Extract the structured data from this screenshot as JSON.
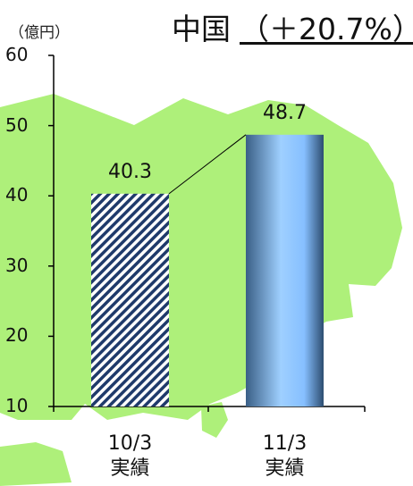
{
  "unit_label": "（億円）",
  "title": "中国",
  "change": "（＋20.7%）",
  "colors": {
    "map": "#aef07a",
    "bar1_stripe_dark": "#1f3a6b",
    "bar2_light": "#9fd0ff",
    "bar2_dark": "#3a5f86",
    "axis": "#000000"
  },
  "chart_data": {
    "type": "bar",
    "categories": [
      "10/3\n実績",
      "11/3\n実績"
    ],
    "category_lines": [
      [
        "10/3",
        "実績"
      ],
      [
        "11/3",
        "実績"
      ]
    ],
    "values": [
      40.3,
      48.7
    ],
    "value_labels": [
      "40.3",
      "48.7"
    ],
    "ylim": [
      10,
      60
    ],
    "yticks": [
      "60",
      "50",
      "40",
      "30",
      "20",
      "10"
    ],
    "title": "中国",
    "ylabel": "（億円）",
    "xlabel": "",
    "grid": false
  }
}
